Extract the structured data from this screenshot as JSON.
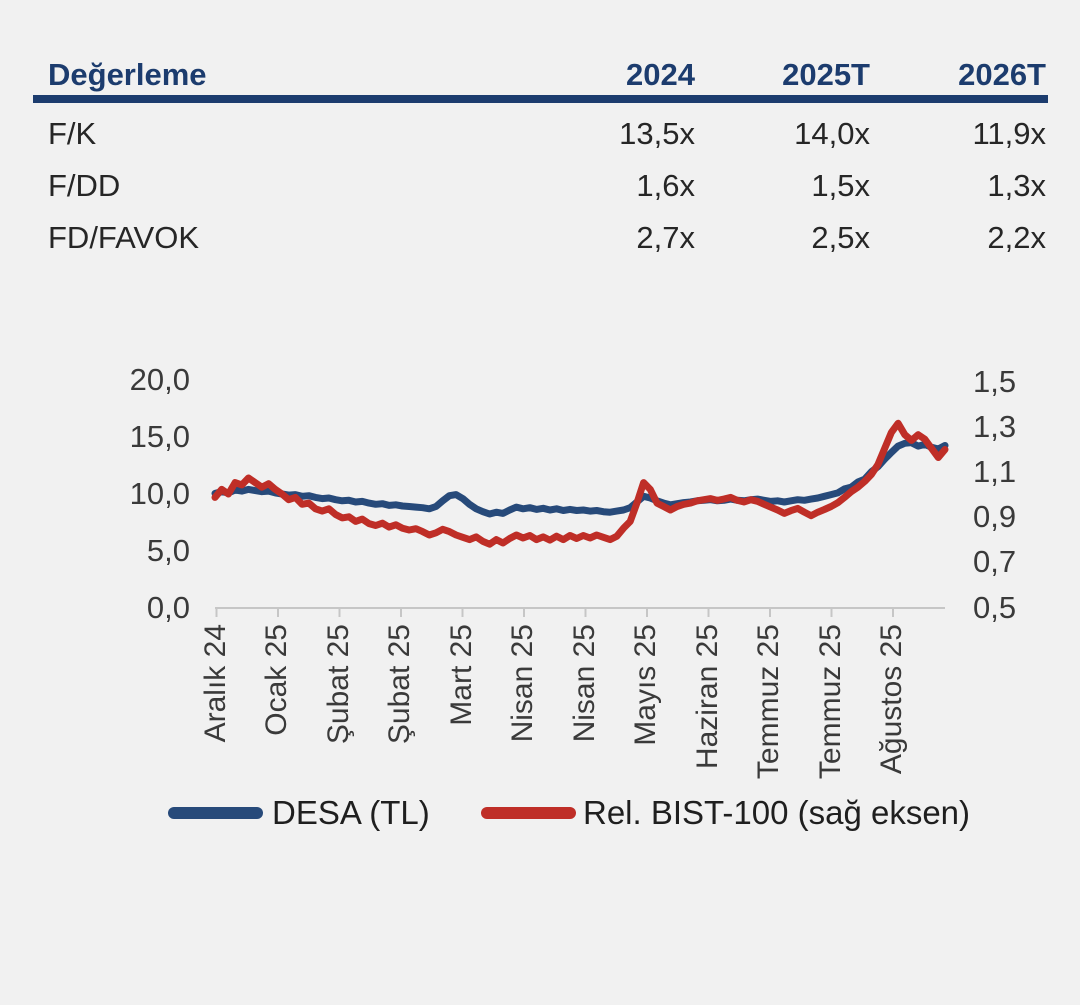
{
  "table": {
    "title": "Değerleme",
    "columns": [
      "2024",
      "2025T",
      "2026T"
    ],
    "rows": [
      {
        "label": "F/K",
        "values": [
          "13,5x",
          "14,0x",
          "11,9x"
        ]
      },
      {
        "label": "F/DD",
        "values": [
          "1,6x",
          "1,5x",
          "1,3x"
        ]
      },
      {
        "label": "FD/FAVOK",
        "values": [
          "2,7x",
          "2,5x",
          "2,2x"
        ]
      }
    ]
  },
  "chart_data": {
    "type": "line",
    "title": "",
    "left_axis": {
      "ticks": [
        "20,0",
        "15,0",
        "10,0",
        "5,0",
        "0,0"
      ],
      "range": [
        0,
        20
      ]
    },
    "right_axis": {
      "ticks": [
        "1,5",
        "1,3",
        "1,1",
        "0,9",
        "0,7",
        "0,5"
      ],
      "range": [
        0.5,
        1.5
      ]
    },
    "x_ticks": [
      "Aralık 24",
      "Ocak 25",
      "Şubat 25",
      "Şubat 25",
      "Mart 25",
      "Nisan 25",
      "Nisan 25",
      "Mayıs 25",
      "Haziran 25",
      "Temmuz 25",
      "Temmuz 25",
      "Ağustos 25"
    ],
    "series": [
      {
        "name": "DESA (TL)",
        "axis": "left",
        "color": "#274a7a",
        "values": [
          10.05,
          10.2,
          10.1,
          10.35,
          10.25,
          10.4,
          10.3,
          10.2,
          10.25,
          10.1,
          10.0,
          9.9,
          9.95,
          9.8,
          9.85,
          9.7,
          9.6,
          9.65,
          9.5,
          9.4,
          9.45,
          9.3,
          9.35,
          9.2,
          9.1,
          9.15,
          9.0,
          9.05,
          8.95,
          8.9,
          8.85,
          8.8,
          8.7,
          8.9,
          9.4,
          9.85,
          9.95,
          9.6,
          9.1,
          8.7,
          8.45,
          8.25,
          8.4,
          8.3,
          8.6,
          8.85,
          8.7,
          8.8,
          8.65,
          8.75,
          8.6,
          8.7,
          8.55,
          8.65,
          8.55,
          8.6,
          8.5,
          8.55,
          8.45,
          8.4,
          8.5,
          8.6,
          8.8,
          9.3,
          9.8,
          9.65,
          9.4,
          9.2,
          9.05,
          9.15,
          9.25,
          9.3,
          9.4,
          9.45,
          9.5,
          9.4,
          9.45,
          9.55,
          9.45,
          9.4,
          9.5,
          9.55,
          9.45,
          9.35,
          9.4,
          9.3,
          9.4,
          9.5,
          9.45,
          9.55,
          9.65,
          9.8,
          9.95,
          10.1,
          10.45,
          10.6,
          11.05,
          11.3,
          11.95,
          12.4,
          13.05,
          13.65,
          14.2,
          14.45,
          14.5,
          14.2,
          14.35,
          14.1,
          13.95,
          14.25
        ]
      },
      {
        "name": "Rel. BIST-100 (sağ eksen)",
        "axis": "right",
        "color": "#bf2e27",
        "values": [
          0.985,
          1.02,
          1.0,
          1.05,
          1.04,
          1.07,
          1.05,
          1.03,
          1.045,
          1.02,
          1.0,
          0.975,
          0.985,
          0.955,
          0.96,
          0.935,
          0.925,
          0.935,
          0.91,
          0.895,
          0.9,
          0.88,
          0.89,
          0.87,
          0.862,
          0.872,
          0.855,
          0.865,
          0.85,
          0.842,
          0.848,
          0.835,
          0.82,
          0.83,
          0.845,
          0.835,
          0.82,
          0.81,
          0.8,
          0.812,
          0.792,
          0.78,
          0.8,
          0.785,
          0.805,
          0.82,
          0.807,
          0.818,
          0.8,
          0.812,
          0.798,
          0.815,
          0.8,
          0.818,
          0.805,
          0.818,
          0.807,
          0.82,
          0.81,
          0.8,
          0.815,
          0.85,
          0.88,
          0.96,
          1.05,
          1.02,
          0.96,
          0.945,
          0.93,
          0.945,
          0.955,
          0.96,
          0.97,
          0.975,
          0.98,
          0.972,
          0.978,
          0.985,
          0.972,
          0.965,
          0.975,
          0.968,
          0.955,
          0.942,
          0.93,
          0.915,
          0.927,
          0.937,
          0.92,
          0.905,
          0.92,
          0.932,
          0.945,
          0.962,
          0.985,
          1.01,
          1.03,
          1.055,
          1.085,
          1.13,
          1.2,
          1.27,
          1.31,
          1.26,
          1.235,
          1.26,
          1.24,
          1.2,
          1.16,
          1.195
        ]
      }
    ],
    "legend_position": "bottom"
  },
  "colors": {
    "accent_navy": "#1c3c6e",
    "line_blue": "#274a7a",
    "line_red": "#bf2e27",
    "background": "#f1f1f1",
    "axis_gray": "#c6c6c6"
  }
}
